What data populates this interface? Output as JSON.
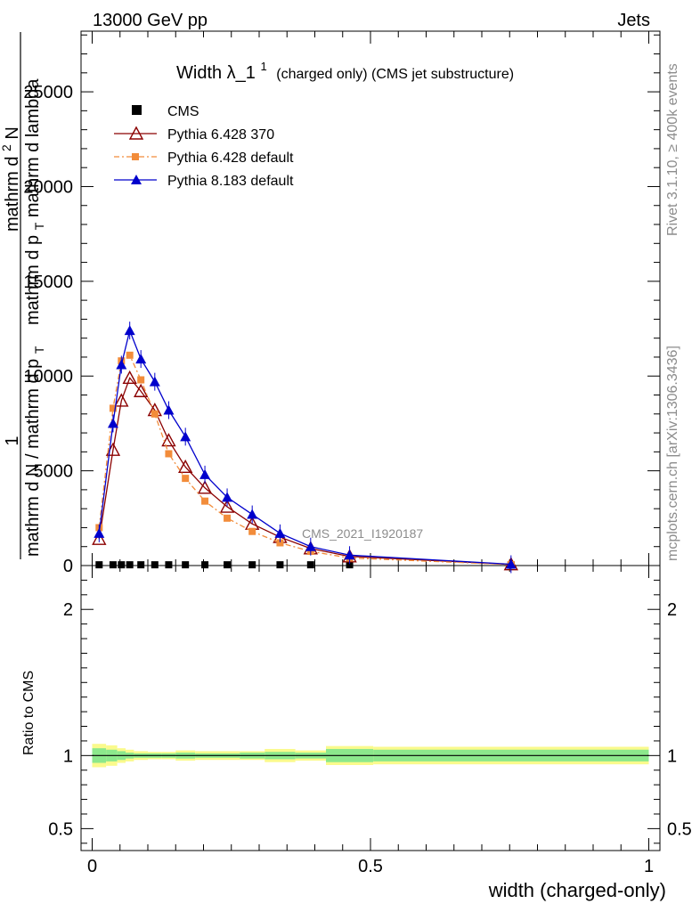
{
  "header": {
    "left": "13000 GeV pp",
    "right": "Jets"
  },
  "side": {
    "rivet": "Rivet 3.1.10, ≥ 400k events",
    "mcplots": "mcplots.cern.ch [arXiv:1306.3436]"
  },
  "chart_data": {
    "type": "line",
    "title": "Width λ_1",
    "title_sup": "1",
    "title_suffix": "(charged only) (CMS jet substructure)",
    "watermark": "CMS_2021_I1920187",
    "xlabel": "width (charged-only)",
    "ylabel": "1 mathrm d N / mathrm d p T mathrm d^2N mathrm d p T mathrm d lambda",
    "ylabel_lines": {
      "numer1": "1",
      "denom1": "mathrm d N / mathrm d p",
      "sub1": "T",
      "numer2a": "mathrm d",
      "numer2_sup": "2",
      "numer2b": "N",
      "denom2a": "mathrm d p",
      "sub2": "T",
      "denom2b": "mathrm d lambda"
    },
    "ratio_ylabel": "Ratio to CMS",
    "xlim": [
      -0.02,
      1.02
    ],
    "ylim": [
      0,
      28200
    ],
    "ratio_ylim": [
      0.35,
      2.3
    ],
    "x_ticks": [
      0,
      0.5,
      1
    ],
    "x_tick_labels": [
      "0",
      "0.5",
      "1"
    ],
    "y_ticks": [
      0,
      5000,
      10000,
      15000,
      20000,
      25000
    ],
    "y_tick_labels": [
      "0",
      "5000",
      "10000",
      "15000",
      "20000",
      "25000"
    ],
    "ratio_ticks": [
      0.5,
      1,
      2
    ],
    "ratio_tick_labels": [
      "0.5",
      "1",
      "2"
    ],
    "x": [
      0.0125,
      0.0375,
      0.0525,
      0.0675,
      0.0875,
      0.1125,
      0.1375,
      0.1675,
      0.2025,
      0.2425,
      0.2875,
      0.3375,
      0.3925,
      0.4625,
      0.7525
    ],
    "series": [
      {
        "name": "CMS",
        "style": "cms",
        "color": "#000000",
        "values": [
          40,
          40,
          40,
          40,
          40,
          40,
          40,
          40,
          40,
          40,
          40,
          40,
          40,
          40,
          20
        ]
      },
      {
        "name": "Pythia 6.428 370",
        "style": "open-triangle",
        "color": "#8b0000",
        "values": [
          1400,
          6100,
          8700,
          9900,
          9200,
          8200,
          6600,
          5200,
          4100,
          3100,
          2200,
          1500,
          900,
          480,
          60
        ]
      },
      {
        "name": "Pythia 6.428 default",
        "style": "square-dashdot",
        "color": "#f28c3a",
        "values": [
          2000,
          8300,
          10800,
          11100,
          9800,
          8000,
          5900,
          4600,
          3400,
          2500,
          1800,
          1200,
          750,
          400,
          50
        ]
      },
      {
        "name": "Pythia 8.183 default",
        "style": "filled-triangle",
        "color": "#0000cc",
        "values": [
          1700,
          7500,
          10600,
          12400,
          10900,
          9700,
          8200,
          6800,
          4800,
          3600,
          2700,
          1700,
          1000,
          550,
          70
        ]
      }
    ],
    "ratio_bands": [
      {
        "x0": 0.0,
        "x1": 0.025,
        "inner": 0.05,
        "outer": 0.08
      },
      {
        "x0": 0.025,
        "x1": 0.045,
        "inner": 0.04,
        "outer": 0.07
      },
      {
        "x0": 0.045,
        "x1": 0.06,
        "inner": 0.03,
        "outer": 0.05
      },
      {
        "x0": 0.06,
        "x1": 0.075,
        "inner": 0.02,
        "outer": 0.04
      },
      {
        "x0": 0.075,
        "x1": 0.1,
        "inner": 0.015,
        "outer": 0.03
      },
      {
        "x0": 0.1,
        "x1": 0.125,
        "inner": 0.015,
        "outer": 0.025
      },
      {
        "x0": 0.125,
        "x1": 0.15,
        "inner": 0.015,
        "outer": 0.025
      },
      {
        "x0": 0.15,
        "x1": 0.185,
        "inner": 0.02,
        "outer": 0.035
      },
      {
        "x0": 0.185,
        "x1": 0.22,
        "inner": 0.015,
        "outer": 0.03
      },
      {
        "x0": 0.22,
        "x1": 0.265,
        "inner": 0.015,
        "outer": 0.03
      },
      {
        "x0": 0.265,
        "x1": 0.31,
        "inner": 0.02,
        "outer": 0.03
      },
      {
        "x0": 0.31,
        "x1": 0.365,
        "inner": 0.025,
        "outer": 0.045
      },
      {
        "x0": 0.365,
        "x1": 0.42,
        "inner": 0.02,
        "outer": 0.035
      },
      {
        "x0": 0.42,
        "x1": 0.505,
        "inner": 0.045,
        "outer": 0.065
      },
      {
        "x0": 0.505,
        "x1": 1.0,
        "inner": 0.04,
        "outer": 0.06
      }
    ],
    "colors": {
      "band_inner": "#8ce88c",
      "band_outer": "#fafa8c",
      "watermark": "#8c8c8c"
    }
  }
}
